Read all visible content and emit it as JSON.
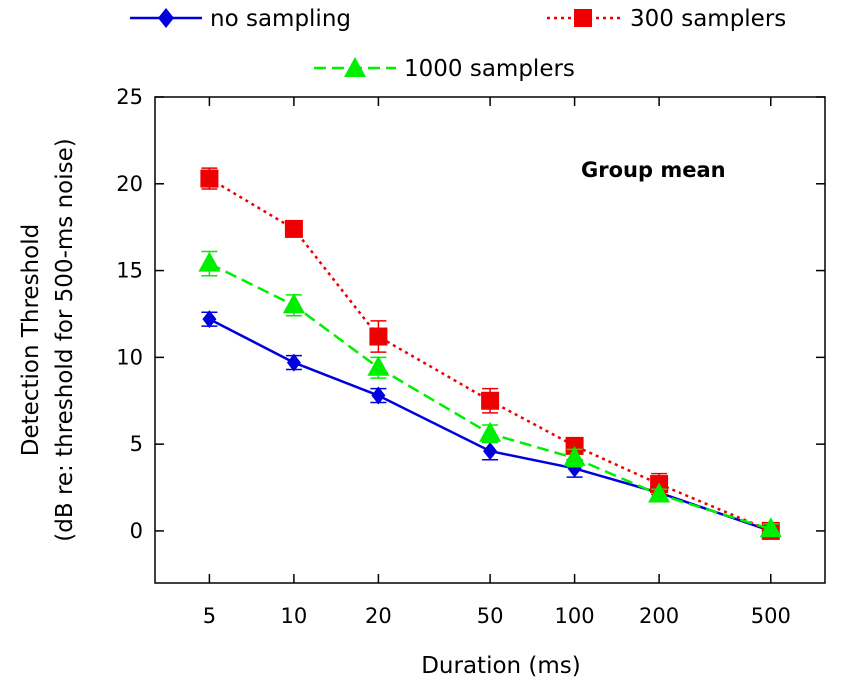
{
  "chart_data": {
    "type": "line",
    "annotation": "Group mean",
    "xlabel": "Duration (ms)",
    "ylabel_line1": "Detection Threshold",
    "ylabel_line2": "(dB re: threshold for 500-ms noise)",
    "xscale": "log",
    "xlim": [
      3.2,
      780
    ],
    "ylim": [
      -3,
      25
    ],
    "x": [
      5,
      10,
      20,
      50,
      100,
      200,
      500
    ],
    "x_tick_labels": [
      "5",
      "10",
      "20",
      "50",
      "100",
      "200",
      "500"
    ],
    "y_ticks": [
      0,
      5,
      10,
      15,
      20,
      25
    ],
    "y_tick_labels": [
      "0",
      "5",
      "10",
      "15",
      "20",
      "25"
    ],
    "series": [
      {
        "name": "no sampling",
        "color": "#0000dd",
        "marker": "diamond",
        "dash": "solid",
        "values": [
          12.2,
          9.7,
          7.8,
          4.6,
          3.6,
          2.2,
          0.0
        ],
        "errors": [
          0.4,
          0.4,
          0.4,
          0.5,
          0.5,
          0.3,
          0.3
        ]
      },
      {
        "name": "300 samplers",
        "color": "#ee0000",
        "marker": "square",
        "dash": "dotted",
        "values": [
          20.3,
          17.4,
          11.2,
          7.5,
          4.9,
          2.7,
          0.0
        ],
        "errors": [
          0.6,
          0.3,
          0.9,
          0.7,
          0.3,
          0.6,
          0.3
        ]
      },
      {
        "name": "1000 samplers",
        "color": "#00ee00",
        "marker": "triangle",
        "dash": "dashed",
        "values": [
          15.4,
          13.0,
          9.4,
          5.6,
          4.2,
          2.1,
          0.1
        ],
        "errors": [
          0.7,
          0.6,
          0.6,
          0.5,
          0.5,
          0.3,
          0.3
        ]
      }
    ],
    "legend_position": "top"
  }
}
